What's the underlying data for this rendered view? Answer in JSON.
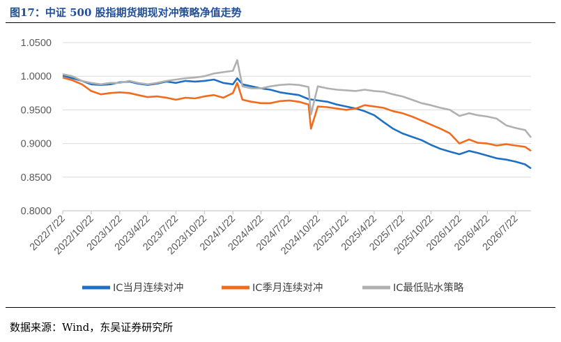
{
  "figure_title": "图17：中证 500 股指期货期现对冲策略净值走势",
  "source_note": "数据来源：Wind，东吴证券研究所",
  "chart_data": {
    "type": "line",
    "title": "",
    "xlabel": "",
    "ylabel": "",
    "ylim": [
      0.8,
      1.05
    ],
    "yticks": [
      "0.8000",
      "0.8500",
      "0.9000",
      "0.9500",
      "1.0000",
      "1.0500"
    ],
    "xticks": [
      "2022/7/22",
      "2022/10/22",
      "2023/1/22",
      "2023/4/22",
      "2023/7/22",
      "2023/10/22",
      "2024/1/22",
      "2024/4/22",
      "2024/7/22",
      "2024/10/22",
      "2025/1/22",
      "2025/4/22",
      "2025/7/22",
      "2025/10/22",
      "2026/1/22",
      "2026/4/22",
      "2026/7/22"
    ],
    "grid": "horizontal",
    "legend_position": "bottom",
    "series": [
      {
        "name": "IC当月连续对冲",
        "color": "#1f6fc4",
        "x": [
          "2022/7/22",
          "2022/8/22",
          "2022/9/22",
          "2022/10/22",
          "2022/11/22",
          "2022/12/22",
          "2023/1/22",
          "2023/2/22",
          "2023/3/22",
          "2023/4/22",
          "2023/5/22",
          "2023/6/22",
          "2023/7/22",
          "2023/8/22",
          "2023/9/22",
          "2023/10/22",
          "2023/11/22",
          "2023/12/22",
          "2024/1/22",
          "2024/2/5",
          "2024/2/22",
          "2024/3/22",
          "2024/4/22",
          "2024/5/22",
          "2024/6/22",
          "2024/7/22",
          "2024/8/22",
          "2024/9/22",
          "2024/10/22",
          "2024/11/22",
          "2024/12/22",
          "2025/1/22",
          "2025/2/22",
          "2025/3/22",
          "2025/4/22",
          "2025/5/22",
          "2025/6/22",
          "2025/7/22",
          "2025/8/22",
          "2025/9/22",
          "2025/10/22",
          "2025/11/22",
          "2025/12/22",
          "2026/1/22",
          "2026/2/22",
          "2026/3/22",
          "2026/4/22",
          "2026/5/22",
          "2026/6/22",
          "2026/7/22",
          "2026/8/22",
          "2026/9/10"
        ],
        "values": [
          1.001,
          0.997,
          0.993,
          0.988,
          0.987,
          0.988,
          0.991,
          0.992,
          0.989,
          0.987,
          0.989,
          0.992,
          0.99,
          0.993,
          0.992,
          0.993,
          0.995,
          0.99,
          0.988,
          0.997,
          0.988,
          0.985,
          0.982,
          0.98,
          0.976,
          0.974,
          0.972,
          0.966,
          0.964,
          0.962,
          0.958,
          0.955,
          0.952,
          0.948,
          0.942,
          0.932,
          0.922,
          0.915,
          0.91,
          0.905,
          0.898,
          0.892,
          0.888,
          0.884,
          0.889,
          0.886,
          0.882,
          0.878,
          0.876,
          0.873,
          0.869,
          0.863
        ]
      },
      {
        "name": "IC季月连续对冲",
        "color": "#f26b1d",
        "x": [
          "2022/7/22",
          "2022/8/22",
          "2022/9/22",
          "2022/10/22",
          "2022/11/22",
          "2022/12/22",
          "2023/1/22",
          "2023/2/22",
          "2023/3/22",
          "2023/4/22",
          "2023/5/22",
          "2023/6/22",
          "2023/7/22",
          "2023/8/22",
          "2023/9/22",
          "2023/10/22",
          "2023/11/22",
          "2023/12/22",
          "2024/1/22",
          "2024/2/5",
          "2024/2/22",
          "2024/3/22",
          "2024/4/22",
          "2024/5/22",
          "2024/6/22",
          "2024/7/22",
          "2024/8/22",
          "2024/9/22",
          "2024/9/30",
          "2024/10/22",
          "2024/11/22",
          "2024/12/22",
          "2025/1/22",
          "2025/2/22",
          "2025/3/22",
          "2025/4/22",
          "2025/5/22",
          "2025/6/22",
          "2025/7/22",
          "2025/8/22",
          "2025/9/22",
          "2025/10/22",
          "2025/11/22",
          "2025/12/22",
          "2026/1/22",
          "2026/2/22",
          "2026/3/22",
          "2026/4/22",
          "2026/5/22",
          "2026/6/22",
          "2026/7/22",
          "2026/8/22",
          "2026/9/10"
        ],
        "values": [
          0.998,
          0.994,
          0.988,
          0.978,
          0.973,
          0.975,
          0.976,
          0.975,
          0.972,
          0.969,
          0.97,
          0.968,
          0.965,
          0.968,
          0.967,
          0.97,
          0.972,
          0.968,
          0.975,
          0.99,
          0.965,
          0.962,
          0.96,
          0.96,
          0.963,
          0.964,
          0.962,
          0.958,
          0.922,
          0.955,
          0.954,
          0.952,
          0.95,
          0.952,
          0.957,
          0.955,
          0.953,
          0.948,
          0.945,
          0.94,
          0.934,
          0.928,
          0.922,
          0.915,
          0.9,
          0.906,
          0.901,
          0.9,
          0.897,
          0.899,
          0.897,
          0.895,
          0.889
        ]
      },
      {
        "name": "IC最低贴水策略",
        "color": "#b0b0b0",
        "x": [
          "2022/7/22",
          "2022/8/22",
          "2022/9/22",
          "2022/10/22",
          "2022/11/22",
          "2022/12/22",
          "2023/1/22",
          "2023/2/22",
          "2023/3/22",
          "2023/4/22",
          "2023/5/22",
          "2023/6/22",
          "2023/7/22",
          "2023/8/22",
          "2023/9/22",
          "2023/10/22",
          "2023/11/22",
          "2023/12/22",
          "2024/1/22",
          "2024/2/5",
          "2024/2/22",
          "2024/3/22",
          "2024/4/22",
          "2024/5/22",
          "2024/6/22",
          "2024/7/22",
          "2024/8/22",
          "2024/9/22",
          "2024/9/30",
          "2024/10/22",
          "2024/11/22",
          "2024/12/22",
          "2025/1/22",
          "2025/2/22",
          "2025/3/22",
          "2025/4/22",
          "2025/5/22",
          "2025/6/22",
          "2025/7/22",
          "2025/8/22",
          "2025/9/22",
          "2025/10/22",
          "2025/11/22",
          "2025/12/22",
          "2026/1/22",
          "2026/2/22",
          "2026/3/22",
          "2026/4/22",
          "2026/5/22",
          "2026/6/22",
          "2026/7/22",
          "2026/8/22",
          "2026/9/10"
        ],
        "values": [
          1.003,
          1.0,
          0.993,
          0.99,
          0.988,
          0.99,
          0.99,
          0.993,
          0.99,
          0.988,
          0.99,
          0.993,
          0.995,
          0.997,
          0.998,
          1.0,
          1.004,
          1.006,
          1.008,
          1.024,
          0.985,
          0.982,
          0.982,
          0.985,
          0.987,
          0.988,
          0.987,
          0.984,
          0.943,
          0.985,
          0.982,
          0.98,
          0.979,
          0.978,
          0.98,
          0.978,
          0.977,
          0.973,
          0.97,
          0.965,
          0.96,
          0.957,
          0.953,
          0.95,
          0.941,
          0.945,
          0.942,
          0.94,
          0.937,
          0.927,
          0.923,
          0.92,
          0.909
        ]
      }
    ]
  }
}
